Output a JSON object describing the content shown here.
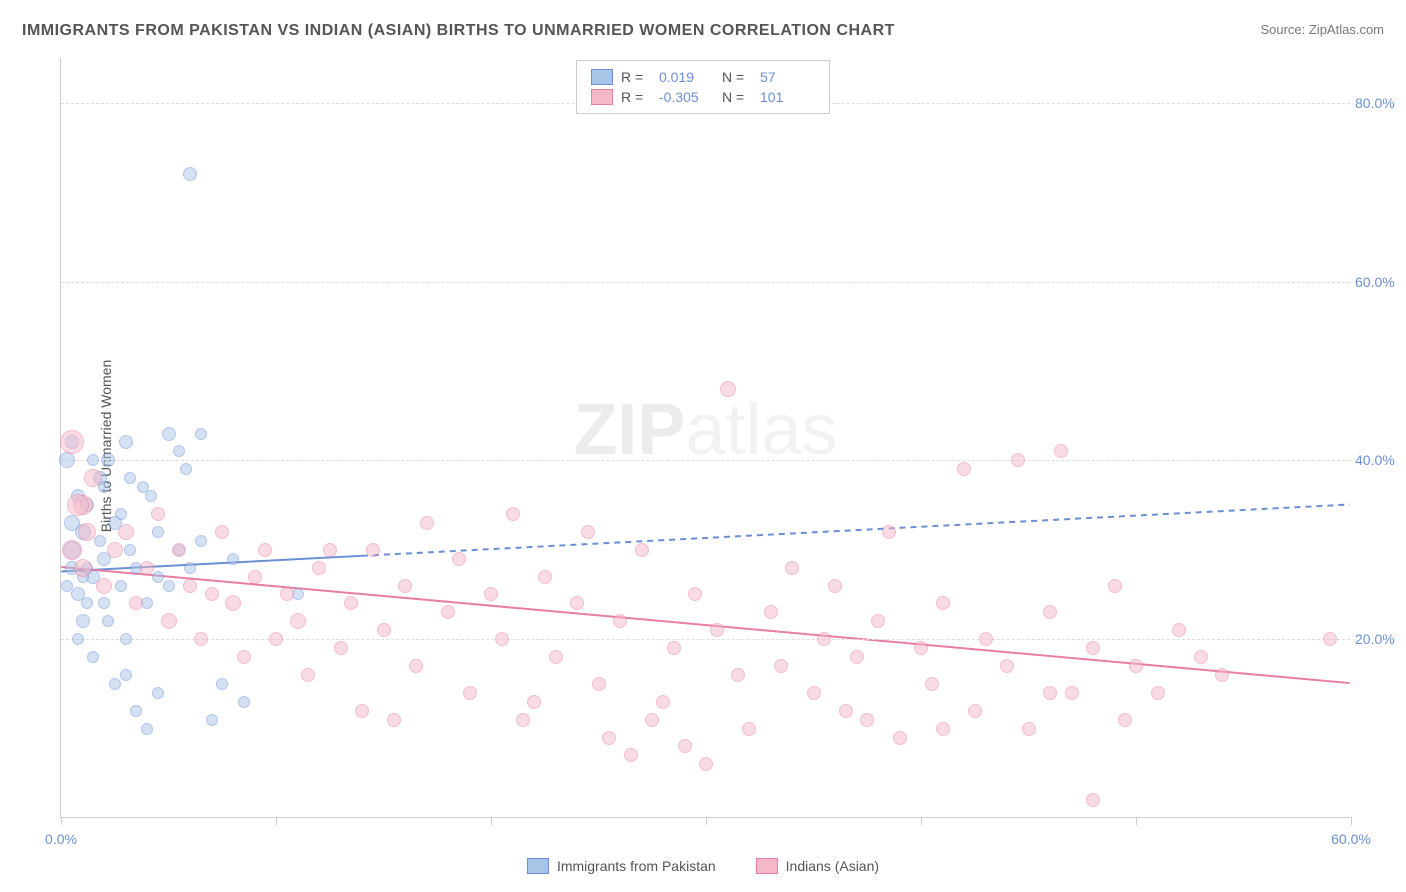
{
  "title": "IMMIGRANTS FROM PAKISTAN VS INDIAN (ASIAN) BIRTHS TO UNMARRIED WOMEN CORRELATION CHART",
  "source": "Source: ZipAtlas.com",
  "watermark_bold": "ZIP",
  "watermark_light": "atlas",
  "chart": {
    "type": "scatter",
    "background_color": "#ffffff",
    "grid_color": "#dddddd",
    "axis_color": "#cccccc",
    "y_axis_label": "Births to Unmarried Women",
    "label_fontsize": 14,
    "title_fontsize": 16,
    "tick_color": "#6b8fd4",
    "xlim": [
      0,
      60
    ],
    "ylim": [
      0,
      85
    ],
    "x_ticks": [
      0,
      10,
      20,
      30,
      40,
      50,
      60
    ],
    "x_tick_labels": [
      "0.0%",
      "",
      "",
      "",
      "",
      "",
      "60.0%"
    ],
    "y_ticks": [
      20,
      40,
      60,
      80
    ],
    "y_tick_labels": [
      "20.0%",
      "40.0%",
      "60.0%",
      "80.0%"
    ],
    "series": [
      {
        "name": "Immigrants from Pakistan",
        "color_fill": "#a8c5e8",
        "color_stroke": "#6b8fd4",
        "fill_opacity": 0.5,
        "marker_radius": 7,
        "r_label": "R =",
        "r_value": "0.019",
        "n_label": "N =",
        "n_value": "57",
        "trend": {
          "y_at_xmin": 27.5,
          "y_at_xmax": 35.0,
          "solid_until_x": 14,
          "line_width": 2
        },
        "points": [
          {
            "x": 0.5,
            "y": 28,
            "r": 7
          },
          {
            "x": 0.5,
            "y": 30,
            "r": 9
          },
          {
            "x": 0.8,
            "y": 25,
            "r": 7
          },
          {
            "x": 1,
            "y": 22,
            "r": 7
          },
          {
            "x": 1,
            "y": 32,
            "r": 8
          },
          {
            "x": 1.2,
            "y": 35,
            "r": 7
          },
          {
            "x": 1.5,
            "y": 18,
            "r": 6
          },
          {
            "x": 1.5,
            "y": 27,
            "r": 7
          },
          {
            "x": 1.8,
            "y": 38,
            "r": 7
          },
          {
            "x": 2,
            "y": 24,
            "r": 6
          },
          {
            "x": 2,
            "y": 29,
            "r": 7
          },
          {
            "x": 2.2,
            "y": 40,
            "r": 7
          },
          {
            "x": 2.5,
            "y": 15,
            "r": 6
          },
          {
            "x": 2.5,
            "y": 33,
            "r": 7
          },
          {
            "x": 2.8,
            "y": 26,
            "r": 6
          },
          {
            "x": 3,
            "y": 20,
            "r": 6
          },
          {
            "x": 3,
            "y": 42,
            "r": 7
          },
          {
            "x": 3.2,
            "y": 30,
            "r": 6
          },
          {
            "x": 3.5,
            "y": 12,
            "r": 6
          },
          {
            "x": 3.5,
            "y": 28,
            "r": 6
          },
          {
            "x": 3.8,
            "y": 37,
            "r": 6
          },
          {
            "x": 4,
            "y": 24,
            "r": 6
          },
          {
            "x": 4,
            "y": 10,
            "r": 6
          },
          {
            "x": 4.5,
            "y": 32,
            "r": 6
          },
          {
            "x": 4.5,
            "y": 14,
            "r": 6
          },
          {
            "x": 5,
            "y": 43,
            "r": 7
          },
          {
            "x": 5,
            "y": 26,
            "r": 6
          },
          {
            "x": 5.5,
            "y": 30,
            "r": 6
          },
          {
            "x": 5.8,
            "y": 39,
            "r": 6
          },
          {
            "x": 6,
            "y": 72,
            "r": 7
          },
          {
            "x": 6,
            "y": 28,
            "r": 6
          },
          {
            "x": 6.5,
            "y": 43,
            "r": 6
          },
          {
            "x": 7,
            "y": 11,
            "r": 6
          },
          {
            "x": 7.5,
            "y": 15,
            "r": 6
          },
          {
            "x": 8,
            "y": 29,
            "r": 6
          },
          {
            "x": 8.5,
            "y": 13,
            "r": 6
          },
          {
            "x": 1.2,
            "y": 28,
            "r": 6
          },
          {
            "x": 1.8,
            "y": 31,
            "r": 6
          },
          {
            "x": 0.8,
            "y": 36,
            "r": 7
          },
          {
            "x": 2.2,
            "y": 22,
            "r": 6
          },
          {
            "x": 2.8,
            "y": 34,
            "r": 6
          },
          {
            "x": 0.3,
            "y": 40,
            "r": 8
          },
          {
            "x": 0.5,
            "y": 42,
            "r": 7
          },
          {
            "x": 3.2,
            "y": 38,
            "r": 6
          },
          {
            "x": 4.2,
            "y": 36,
            "r": 6
          },
          {
            "x": 0.8,
            "y": 20,
            "r": 6
          },
          {
            "x": 1.5,
            "y": 40,
            "r": 6
          },
          {
            "x": 11,
            "y": 25,
            "r": 6
          },
          {
            "x": 2,
            "y": 37,
            "r": 6
          },
          {
            "x": 5.5,
            "y": 41,
            "r": 6
          },
          {
            "x": 1,
            "y": 27,
            "r": 6
          },
          {
            "x": 0.5,
            "y": 33,
            "r": 8
          },
          {
            "x": 3,
            "y": 16,
            "r": 6
          },
          {
            "x": 4.5,
            "y": 27,
            "r": 6
          },
          {
            "x": 6.5,
            "y": 31,
            "r": 6
          },
          {
            "x": 0.3,
            "y": 26,
            "r": 6
          },
          {
            "x": 1.2,
            "y": 24,
            "r": 6
          }
        ]
      },
      {
        "name": "Indians (Asian)",
        "color_fill": "#f5b8c8",
        "color_stroke": "#e87fa0",
        "fill_opacity": 0.5,
        "marker_radius": 8,
        "r_label": "R =",
        "r_value": "-0.305",
        "n_label": "N =",
        "n_value": "101",
        "trend": {
          "y_at_xmin": 28.0,
          "y_at_xmax": 15.0,
          "solid_until_x": 60,
          "line_width": 2
        },
        "points": [
          {
            "x": 0.5,
            "y": 30,
            "r": 10
          },
          {
            "x": 0.5,
            "y": 42,
            "r": 12
          },
          {
            "x": 1,
            "y": 35,
            "r": 10
          },
          {
            "x": 1,
            "y": 28,
            "r": 9
          },
          {
            "x": 1.5,
            "y": 38,
            "r": 9
          },
          {
            "x": 2,
            "y": 26,
            "r": 8
          },
          {
            "x": 2.5,
            "y": 30,
            "r": 8
          },
          {
            "x": 3,
            "y": 32,
            "r": 8
          },
          {
            "x": 3.5,
            "y": 24,
            "r": 7
          },
          {
            "x": 4,
            "y": 28,
            "r": 7
          },
          {
            "x": 5,
            "y": 22,
            "r": 8
          },
          {
            "x": 5.5,
            "y": 30,
            "r": 7
          },
          {
            "x": 6,
            "y": 26,
            "r": 7
          },
          {
            "x": 6.5,
            "y": 20,
            "r": 7
          },
          {
            "x": 7,
            "y": 25,
            "r": 7
          },
          {
            "x": 7.5,
            "y": 32,
            "r": 7
          },
          {
            "x": 8,
            "y": 24,
            "r": 8
          },
          {
            "x": 8.5,
            "y": 18,
            "r": 7
          },
          {
            "x": 9,
            "y": 27,
            "r": 7
          },
          {
            "x": 9.5,
            "y": 30,
            "r": 7
          },
          {
            "x": 10,
            "y": 20,
            "r": 7
          },
          {
            "x": 10.5,
            "y": 25,
            "r": 7
          },
          {
            "x": 11,
            "y": 22,
            "r": 8
          },
          {
            "x": 11.5,
            "y": 16,
            "r": 7
          },
          {
            "x": 12,
            "y": 28,
            "r": 7
          },
          {
            "x": 13,
            "y": 19,
            "r": 7
          },
          {
            "x": 13.5,
            "y": 24,
            "r": 7
          },
          {
            "x": 14,
            "y": 12,
            "r": 7
          },
          {
            "x": 14.5,
            "y": 30,
            "r": 7
          },
          {
            "x": 15,
            "y": 21,
            "r": 7
          },
          {
            "x": 16,
            "y": 26,
            "r": 7
          },
          {
            "x": 16.5,
            "y": 17,
            "r": 7
          },
          {
            "x": 17,
            "y": 33,
            "r": 7
          },
          {
            "x": 18,
            "y": 23,
            "r": 7
          },
          {
            "x": 18.5,
            "y": 29,
            "r": 7
          },
          {
            "x": 19,
            "y": 14,
            "r": 7
          },
          {
            "x": 20,
            "y": 25,
            "r": 7
          },
          {
            "x": 20.5,
            "y": 20,
            "r": 7
          },
          {
            "x": 21,
            "y": 34,
            "r": 7
          },
          {
            "x": 21.5,
            "y": 11,
            "r": 7
          },
          {
            "x": 22,
            "y": 13,
            "r": 7
          },
          {
            "x": 22.5,
            "y": 27,
            "r": 7
          },
          {
            "x": 23,
            "y": 18,
            "r": 7
          },
          {
            "x": 24,
            "y": 24,
            "r": 7
          },
          {
            "x": 24.5,
            "y": 32,
            "r": 7
          },
          {
            "x": 25,
            "y": 15,
            "r": 7
          },
          {
            "x": 25.5,
            "y": 9,
            "r": 7
          },
          {
            "x": 26,
            "y": 22,
            "r": 7
          },
          {
            "x": 26.5,
            "y": 7,
            "r": 7
          },
          {
            "x": 27,
            "y": 30,
            "r": 7
          },
          {
            "x": 28,
            "y": 13,
            "r": 7
          },
          {
            "x": 28.5,
            "y": 19,
            "r": 7
          },
          {
            "x": 29,
            "y": 8,
            "r": 7
          },
          {
            "x": 29.5,
            "y": 25,
            "r": 7
          },
          {
            "x": 30,
            "y": 6,
            "r": 7
          },
          {
            "x": 30.5,
            "y": 21,
            "r": 7
          },
          {
            "x": 31,
            "y": 48,
            "r": 8
          },
          {
            "x": 31.5,
            "y": 16,
            "r": 7
          },
          {
            "x": 32,
            "y": 10,
            "r": 7
          },
          {
            "x": 33,
            "y": 23,
            "r": 7
          },
          {
            "x": 33.5,
            "y": 17,
            "r": 7
          },
          {
            "x": 34,
            "y": 28,
            "r": 7
          },
          {
            "x": 35,
            "y": 14,
            "r": 7
          },
          {
            "x": 35.5,
            "y": 20,
            "r": 7
          },
          {
            "x": 36,
            "y": 26,
            "r": 7
          },
          {
            "x": 37,
            "y": 18,
            "r": 7
          },
          {
            "x": 37.5,
            "y": 11,
            "r": 7
          },
          {
            "x": 38,
            "y": 22,
            "r": 7
          },
          {
            "x": 38.5,
            "y": 32,
            "r": 7
          },
          {
            "x": 39,
            "y": 9,
            "r": 7
          },
          {
            "x": 40,
            "y": 19,
            "r": 7
          },
          {
            "x": 40.5,
            "y": 15,
            "r": 7
          },
          {
            "x": 41,
            "y": 24,
            "r": 7
          },
          {
            "x": 42,
            "y": 39,
            "r": 7
          },
          {
            "x": 42.5,
            "y": 12,
            "r": 7
          },
          {
            "x": 43,
            "y": 20,
            "r": 7
          },
          {
            "x": 44,
            "y": 17,
            "r": 7
          },
          {
            "x": 44.5,
            "y": 40,
            "r": 7
          },
          {
            "x": 45,
            "y": 10,
            "r": 7
          },
          {
            "x": 46,
            "y": 23,
            "r": 7
          },
          {
            "x": 46.5,
            "y": 41,
            "r": 7
          },
          {
            "x": 47,
            "y": 14,
            "r": 7
          },
          {
            "x": 48,
            "y": 19,
            "r": 7
          },
          {
            "x": 48,
            "y": 2,
            "r": 7
          },
          {
            "x": 49,
            "y": 26,
            "r": 7
          },
          {
            "x": 49.5,
            "y": 11,
            "r": 7
          },
          {
            "x": 50,
            "y": 17,
            "r": 7
          },
          {
            "x": 51,
            "y": 14,
            "r": 7
          },
          {
            "x": 52,
            "y": 21,
            "r": 7
          },
          {
            "x": 53,
            "y": 18,
            "r": 7
          },
          {
            "x": 54,
            "y": 16,
            "r": 7
          },
          {
            "x": 59,
            "y": 20,
            "r": 7
          },
          {
            "x": 0.8,
            "y": 35,
            "r": 11
          },
          {
            "x": 1.2,
            "y": 32,
            "r": 9
          },
          {
            "x": 4.5,
            "y": 34,
            "r": 7
          },
          {
            "x": 12.5,
            "y": 30,
            "r": 7
          },
          {
            "x": 15.5,
            "y": 11,
            "r": 7
          },
          {
            "x": 46,
            "y": 14,
            "r": 7
          },
          {
            "x": 41,
            "y": 10,
            "r": 7
          },
          {
            "x": 36.5,
            "y": 12,
            "r": 7
          },
          {
            "x": 27.5,
            "y": 11,
            "r": 7
          }
        ]
      }
    ]
  },
  "legend_bottom": [
    {
      "label": "Immigrants from Pakistan",
      "fill": "#a8c5e8",
      "stroke": "#6b8fd4"
    },
    {
      "label": "Indians (Asian)",
      "fill": "#f5b8c8",
      "stroke": "#e87fa0"
    }
  ]
}
